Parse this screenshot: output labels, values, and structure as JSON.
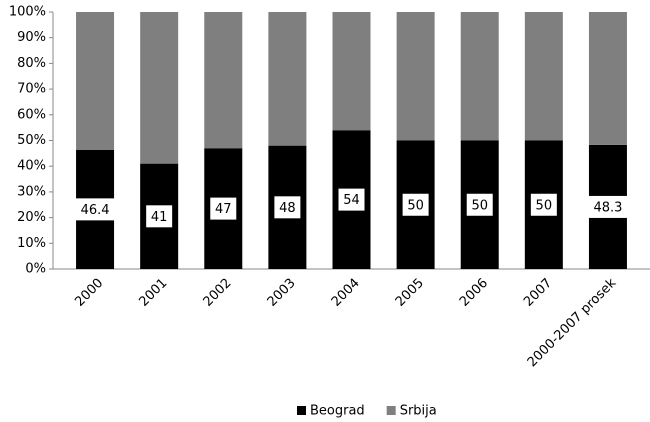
{
  "chart_data": {
    "type": "stacked_bar",
    "categories": [
      "2000",
      "2001",
      "2002",
      "2003",
      "2004",
      "2005",
      "2006",
      "2007",
      "2000-2007 prosek"
    ],
    "series": [
      {
        "name": "Beograd",
        "color": "#000000",
        "values": [
          46.4,
          41,
          47,
          48,
          54,
          50,
          50,
          50,
          48.3
        ]
      },
      {
        "name": "Srbija",
        "color": "#7f7f7f",
        "values": [
          53.6,
          59,
          53,
          52,
          46,
          50,
          50,
          50,
          51.7
        ]
      }
    ],
    "ylim": [
      0,
      100
    ],
    "yticks": [
      {
        "value": 0,
        "label": "0%"
      },
      {
        "value": 10,
        "label": "10%"
      },
      {
        "value": 20,
        "label": "20%"
      },
      {
        "value": 30,
        "label": "30%"
      },
      {
        "value": 40,
        "label": "40%"
      },
      {
        "value": 50,
        "label": "50%"
      },
      {
        "value": 60,
        "label": "60%"
      },
      {
        "value": 70,
        "label": "70%"
      },
      {
        "value": 80,
        "label": "80%"
      },
      {
        "value": 90,
        "label": "90%"
      },
      {
        "value": 100,
        "label": "100%"
      }
    ],
    "legend": "bottom"
  }
}
